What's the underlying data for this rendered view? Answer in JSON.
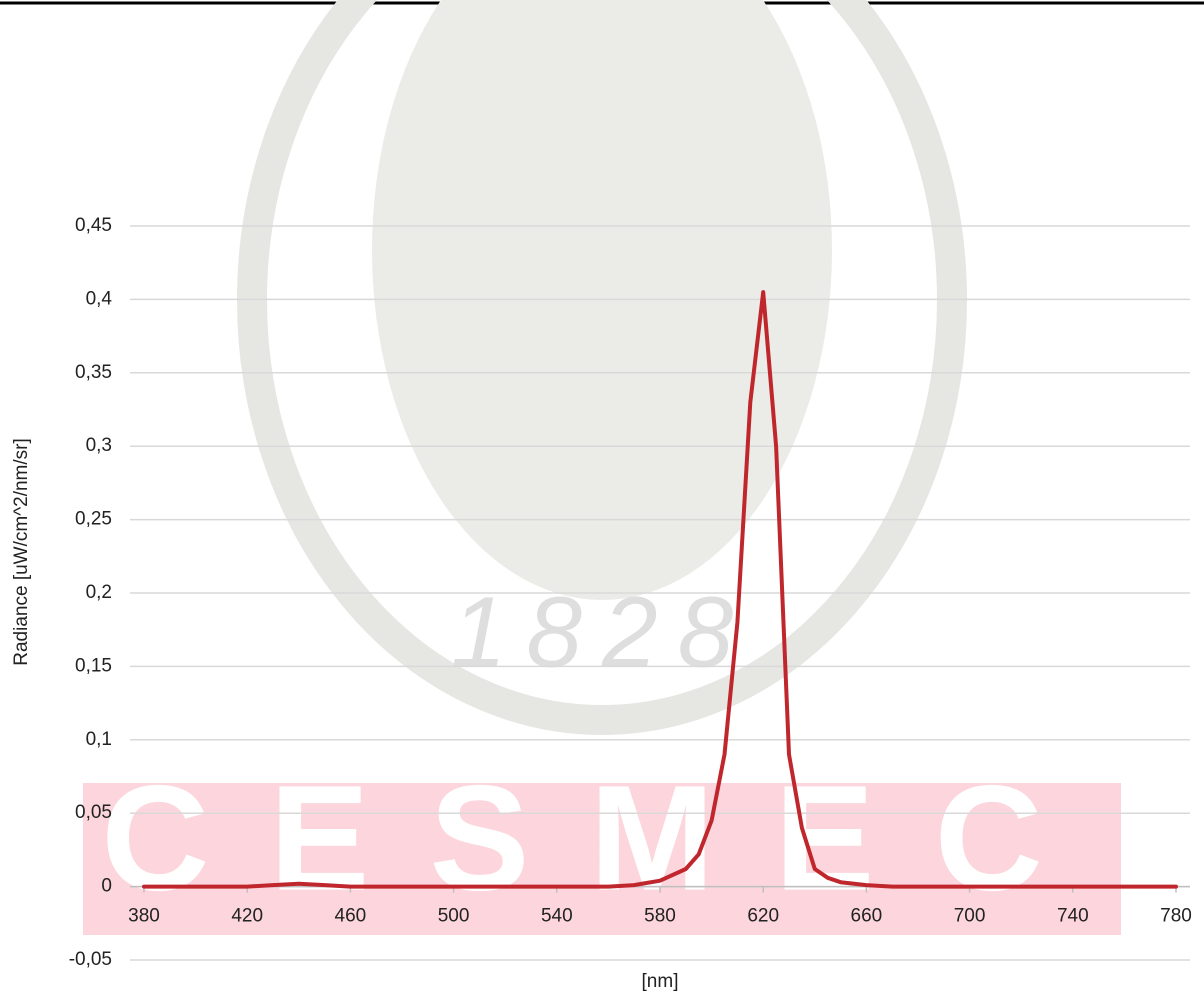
{
  "chart_data": {
    "type": "line",
    "y_label": "Radiance [uW/cm^2/nm/sr]",
    "x_label": "[nm]",
    "watermarks": [
      "CESMEC",
      "1828"
    ],
    "x": [
      380,
      390,
      400,
      410,
      420,
      430,
      440,
      450,
      460,
      470,
      480,
      490,
      500,
      510,
      520,
      530,
      540,
      550,
      560,
      570,
      580,
      590,
      595,
      600,
      605,
      610,
      615,
      620,
      625,
      630,
      635,
      640,
      645,
      650,
      660,
      670,
      680,
      690,
      700,
      710,
      720,
      730,
      740,
      750,
      760,
      770,
      780
    ],
    "values": [
      0,
      0,
      0,
      0,
      0,
      0.001,
      0.002,
      0.001,
      0,
      0,
      0,
      0,
      0,
      0,
      0,
      0,
      0,
      0,
      0,
      0.001,
      0.004,
      0.012,
      0.022,
      0.045,
      0.09,
      0.18,
      0.33,
      0.405,
      0.3,
      0.09,
      0.04,
      0.012,
      0.006,
      0.003,
      0.001,
      0,
      0,
      0,
      0,
      0,
      0,
      0,
      0,
      0,
      0,
      0,
      0
    ],
    "color": "#c0272d",
    "xlim": [
      380,
      780
    ],
    "xticks": [
      380,
      420,
      460,
      500,
      540,
      580,
      620,
      660,
      700,
      740,
      780
    ],
    "ylim": [
      -0.05,
      0.45
    ],
    "yticks": [
      {
        "value": -0.05,
        "label": "-0,05"
      },
      0,
      {
        "value": 0.05,
        "label": "0,05"
      },
      {
        "value": 0.1,
        "label": "0,1"
      },
      {
        "value": 0.15,
        "label": "0,15"
      },
      {
        "value": 0.2,
        "label": "0,2"
      },
      {
        "value": 0.25,
        "label": "0,25"
      },
      {
        "value": 0.3,
        "label": "0,3"
      },
      {
        "value": 0.35,
        "label": "0,35"
      },
      {
        "value": 0.4,
        "label": "0,4"
      },
      {
        "value": 0.45,
        "label": "0,45"
      }
    ],
    "grid": true
  }
}
